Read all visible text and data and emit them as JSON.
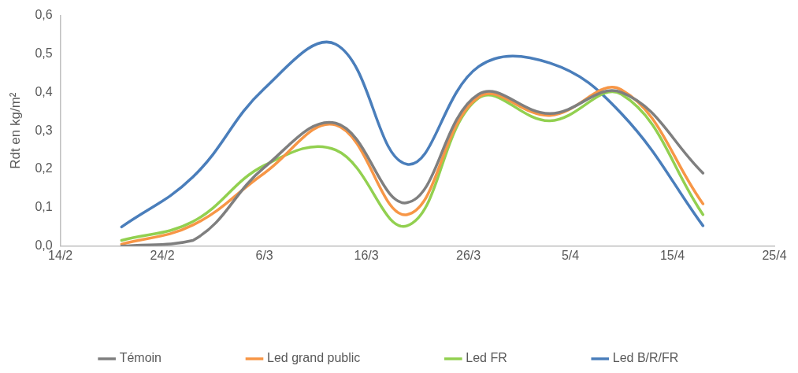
{
  "chart_data": {
    "type": "line",
    "ylabel": "Rdt en kg/m²",
    "x": [
      "--02-20",
      "--02-27",
      "--03-06",
      "--03-13",
      "--03-20",
      "--03-27",
      "--04-03",
      "--04-10",
      "--04-18"
    ],
    "series": [
      {
        "name": "Témoin",
        "color": "#7f7f7f",
        "values": [
          0.0,
          0.015,
          0.205,
          0.32,
          0.113,
          0.395,
          0.345,
          0.4,
          0.19
        ]
      },
      {
        "name": "Led grand public",
        "color": "#f79646",
        "values": [
          0.005,
          0.055,
          0.19,
          0.315,
          0.082,
          0.388,
          0.34,
          0.407,
          0.11
        ]
      },
      {
        "name": "Led FR",
        "color": "#92d050",
        "values": [
          0.015,
          0.064,
          0.21,
          0.25,
          0.053,
          0.385,
          0.326,
          0.395,
          0.082
        ]
      },
      {
        "name": "Led B/R/FR",
        "color": "#4a7ebb",
        "values": [
          0.05,
          0.18,
          0.41,
          0.525,
          0.213,
          0.467,
          0.476,
          0.345,
          0.053
        ]
      }
    ],
    "xlim": [
      "--02-14",
      "--04-25"
    ],
    "xticks": [
      {
        "value": "--02-14",
        "label": "14/2"
      },
      {
        "value": "--02-24",
        "label": "24/2"
      },
      {
        "value": "--03-06",
        "label": "6/3"
      },
      {
        "value": "--03-16",
        "label": "16/3"
      },
      {
        "value": "--03-26",
        "label": "26/3"
      },
      {
        "value": "--04-05",
        "label": "5/4"
      },
      {
        "value": "--04-15",
        "label": "15/4"
      },
      {
        "value": "--04-25",
        "label": "25/4"
      }
    ],
    "ylim": [
      0,
      0.6
    ],
    "yticks": [
      {
        "value": 0,
        "label": "0,0"
      },
      {
        "value": 0.1,
        "label": "0,1"
      },
      {
        "value": 0.2,
        "label": "0,2"
      },
      {
        "value": 0.3,
        "label": "0,3"
      },
      {
        "value": 0.4,
        "label": "0,4"
      },
      {
        "value": 0.5,
        "label": "0,5"
      },
      {
        "value": 0.6,
        "label": "0,6"
      }
    ],
    "grid": false,
    "legend": "bottom",
    "marker": "none",
    "line_style": "solid"
  }
}
